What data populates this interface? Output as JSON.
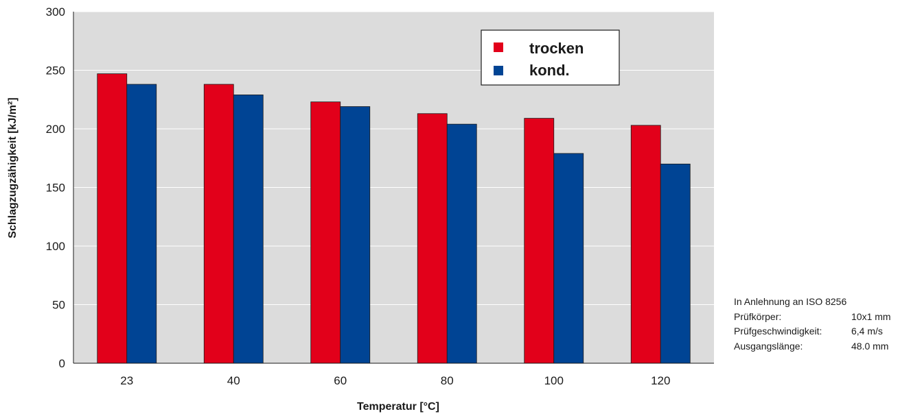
{
  "chart_data": {
    "type": "bar",
    "title": "",
    "xlabel": "Temperatur [°C]",
    "ylabel": "Schlagzugzähigkeit [kJ/m²]",
    "categories": [
      "23",
      "40",
      "60",
      "80",
      "100",
      "120"
    ],
    "series": [
      {
        "name": "trocken",
        "color": "#e2001a",
        "values": [
          247,
          238,
          223,
          213,
          209,
          203
        ]
      },
      {
        "name": "kond.",
        "color": "#004494",
        "values": [
          238,
          229,
          219,
          204,
          179,
          170
        ]
      }
    ],
    "ylim": [
      0,
      300
    ],
    "yticks": [
      "0",
      "50",
      "100",
      "150",
      "200",
      "250",
      "300"
    ],
    "grid": true,
    "legend_position": "top-right",
    "plot_background": "#dcdcdc",
    "gridline_color": "#ffffff"
  },
  "note": {
    "heading": "In Anlehnung an ISO 8256",
    "rows": [
      {
        "label": "Prüfkörper:",
        "value": "10x1 mm"
      },
      {
        "label": "Prüfgeschwindigkeit:",
        "value": "6,4 m/s"
      },
      {
        "label": "Ausgangslänge:",
        "value": "48.0 mm"
      }
    ]
  }
}
